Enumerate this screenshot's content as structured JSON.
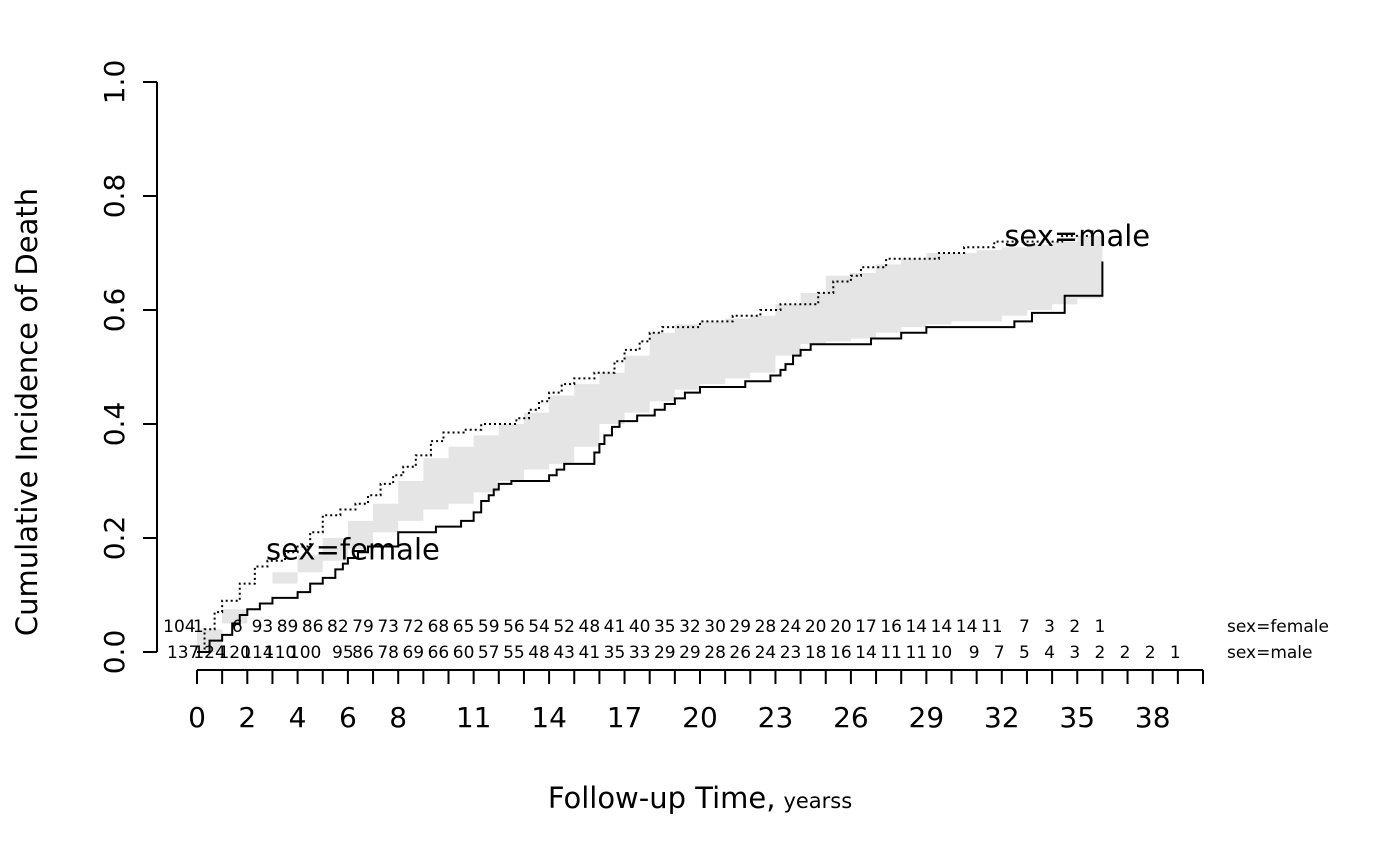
{
  "chart_data": {
    "type": "line",
    "ylabel": "Cumulative Incidence of Death",
    "xlabel": "Follow-up Time,",
    "xlabel_unit": "yearss",
    "ylim": [
      0,
      1
    ],
    "xlim": [
      0,
      40
    ],
    "y_ticks": [
      0.0,
      0.2,
      0.4,
      0.6,
      0.8,
      1.0
    ],
    "y_tick_labels": [
      "0.0",
      "0.2",
      "0.4",
      "0.6",
      "0.8",
      "1.0"
    ],
    "x_ticks": [
      0,
      2,
      4,
      6,
      8,
      11,
      14,
      17,
      20,
      23,
      26,
      29,
      32,
      35,
      38
    ],
    "x_tick_labels": [
      "0",
      "2",
      "4",
      "6",
      "8",
      "11",
      "14",
      "17",
      "20",
      "23",
      "26",
      "29",
      "32",
      "35",
      "38"
    ],
    "x_minor_ticks": [
      0,
      1,
      2,
      3,
      4,
      5,
      6,
      7,
      8,
      9,
      10,
      11,
      12,
      13,
      14,
      15,
      16,
      17,
      18,
      19,
      20,
      21,
      22,
      23,
      24,
      25,
      26,
      27,
      28,
      29,
      30,
      31,
      32,
      33,
      34,
      35,
      36,
      37,
      38,
      39,
      40
    ],
    "grid": false,
    "legend": "none",
    "colors": {
      "line": "#000000",
      "band": "#e5e5e5"
    },
    "series": [
      {
        "name": "sex=female",
        "line_style": "solid",
        "label": "sex=female",
        "x": [
          0,
          0.5,
          1,
          1.4,
          1.7,
          2,
          2.5,
          3,
          4,
          4.5,
          5,
          5.5,
          5.8,
          6,
          6.4,
          6.8,
          8,
          9.5,
          10.5,
          11,
          11.3,
          11.6,
          11.8,
          12,
          12.5,
          14,
          14.3,
          14.6,
          15.8,
          16,
          16.2,
          16.5,
          16.8,
          17.5,
          18.2,
          18.6,
          19,
          19.4,
          20,
          21.8,
          22.8,
          23.2,
          23.4,
          23.7,
          24,
          24.4,
          26.8,
          28,
          29,
          32.5,
          33.2,
          34.5,
          35.8,
          36
        ],
        "y": [
          0.0,
          0.02,
          0.03,
          0.05,
          0.065,
          0.075,
          0.085,
          0.095,
          0.105,
          0.12,
          0.13,
          0.145,
          0.155,
          0.165,
          0.175,
          0.185,
          0.21,
          0.22,
          0.23,
          0.245,
          0.265,
          0.275,
          0.285,
          0.295,
          0.3,
          0.31,
          0.32,
          0.33,
          0.35,
          0.365,
          0.38,
          0.395,
          0.405,
          0.415,
          0.425,
          0.435,
          0.445,
          0.455,
          0.465,
          0.475,
          0.485,
          0.495,
          0.505,
          0.52,
          0.53,
          0.54,
          0.55,
          0.56,
          0.57,
          0.58,
          0.595,
          0.625,
          0.625,
          0.685
        ]
      },
      {
        "name": "sex=male",
        "line_style": "dotted",
        "label": "sex=male",
        "x": [
          0,
          0.3,
          0.7,
          1,
          1.7,
          2.3,
          2.8,
          3.5,
          4,
          4.5,
          5,
          5.7,
          6.3,
          6.8,
          7.3,
          7.8,
          8.2,
          8.7,
          9.3,
          9.8,
          10.6,
          11.3,
          12.7,
          13.2,
          13.6,
          14,
          14.5,
          15,
          15.8,
          16.6,
          17,
          17.6,
          18,
          18.5,
          20,
          21.3,
          22.4,
          23.2,
          24.7,
          25.3,
          26,
          26.4,
          27.4,
          29.5,
          30.5,
          31.7,
          34.4,
          35.6
        ],
        "y": [
          0.0,
          0.04,
          0.07,
          0.09,
          0.12,
          0.15,
          0.16,
          0.175,
          0.185,
          0.21,
          0.24,
          0.25,
          0.26,
          0.275,
          0.295,
          0.31,
          0.325,
          0.345,
          0.37,
          0.385,
          0.39,
          0.4,
          0.41,
          0.425,
          0.44,
          0.455,
          0.47,
          0.48,
          0.49,
          0.51,
          0.53,
          0.545,
          0.56,
          0.57,
          0.58,
          0.59,
          0.6,
          0.61,
          0.63,
          0.65,
          0.66,
          0.675,
          0.69,
          0.7,
          0.71,
          0.72,
          0.73,
          0.745
        ]
      }
    ],
    "confidence_band": {
      "x": [
        0,
        1,
        2,
        3,
        4,
        5,
        6,
        7,
        8,
        9,
        10,
        11,
        12,
        13,
        14,
        15,
        16,
        17,
        18,
        19,
        20,
        21,
        22,
        23,
        24,
        25,
        26,
        27,
        28,
        29,
        30,
        31,
        32,
        33,
        34,
        35,
        36
      ],
      "lower": [
        0.0,
        0.04,
        0.075,
        0.1,
        0.12,
        0.14,
        0.16,
        0.18,
        0.21,
        0.23,
        0.25,
        0.26,
        0.28,
        0.3,
        0.32,
        0.33,
        0.36,
        0.4,
        0.42,
        0.44,
        0.46,
        0.47,
        0.48,
        0.49,
        0.52,
        0.54,
        0.545,
        0.55,
        0.56,
        0.57,
        0.575,
        0.58,
        0.58,
        0.59,
        0.6,
        0.61,
        0.62
      ],
      "upper": [
        0.0,
        0.05,
        0.1,
        0.14,
        0.17,
        0.2,
        0.23,
        0.26,
        0.3,
        0.34,
        0.36,
        0.38,
        0.4,
        0.42,
        0.45,
        0.47,
        0.49,
        0.52,
        0.56,
        0.575,
        0.58,
        0.585,
        0.59,
        0.61,
        0.63,
        0.66,
        0.665,
        0.68,
        0.69,
        0.7,
        0.7,
        0.705,
        0.71,
        0.715,
        0.72,
        0.73,
        0.74
      ]
    },
    "curve_labels": [
      {
        "text": "sex=female",
        "x": 6.2,
        "y": 0.18
      },
      {
        "text": "sex=male",
        "x": 35.0,
        "y": 0.73
      }
    ],
    "risk_table": {
      "x": [
        0,
        1,
        2,
        3,
        4,
        5,
        6,
        7,
        8,
        9,
        10,
        11,
        12,
        13,
        14,
        15,
        16,
        17,
        18,
        19,
        20,
        21,
        22,
        23,
        24,
        25,
        26,
        27,
        28,
        29,
        30,
        31,
        32,
        33,
        34,
        35,
        36,
        37,
        38,
        39
      ],
      "rows": [
        {
          "label": "sex=female",
          "values": [
            "104",
            "1",
            "6",
            "93",
            "89",
            "86",
            "82",
            "79",
            "73",
            "72",
            "68",
            "65",
            "59",
            "56",
            "54",
            "52",
            "48",
            "41",
            "40",
            "35",
            "32",
            "30",
            "29",
            "28",
            "24",
            "20",
            "20",
            "17",
            "16",
            "14",
            "14",
            "14",
            "11",
            "",
            "7",
            "3",
            "2",
            "1",
            "",
            ""
          ],
          "positions": [
            -0.7,
            0.05,
            1.6,
            2.6,
            3.6,
            4.6,
            5.6,
            6.6,
            7.6,
            8.6,
            9.6,
            10.6,
            11.6,
            12.6,
            13.6,
            14.6,
            15.6,
            16.6,
            17.6,
            18.6,
            19.6,
            20.6,
            21.6,
            22.6,
            23.6,
            24.6,
            25.6,
            26.6,
            27.6,
            28.6,
            29.6,
            30.6,
            31.6,
            32.6,
            32.9,
            33.9,
            34.9,
            35.9,
            36.9,
            37.9
          ]
        },
        {
          "label": "sex=male",
          "values": [
            "137",
            "124",
            "120",
            "114",
            "110",
            "100",
            "95",
            "86",
            "78",
            "69",
            "66",
            "60",
            "57",
            "55",
            "48",
            "43",
            "41",
            "35",
            "33",
            "29",
            "29",
            "28",
            "26",
            "24",
            "23",
            "18",
            "16",
            "14",
            "11",
            "11",
            "10",
            "9",
            "7",
            "5",
            "4",
            "3",
            "2",
            "2",
            "2",
            "1"
          ],
          "positions": [
            -0.55,
            0.5,
            1.5,
            2.4,
            3.3,
            4.3,
            5.8,
            6.6,
            7.6,
            8.6,
            9.6,
            10.6,
            11.6,
            12.6,
            13.6,
            14.6,
            15.6,
            16.6,
            17.6,
            18.6,
            19.6,
            20.6,
            21.6,
            22.6,
            23.6,
            24.6,
            25.6,
            26.6,
            27.6,
            28.6,
            29.6,
            30.9,
            31.9,
            32.9,
            33.9,
            34.9,
            35.9,
            36.9,
            37.9,
            38.9
          ]
        }
      ]
    }
  }
}
